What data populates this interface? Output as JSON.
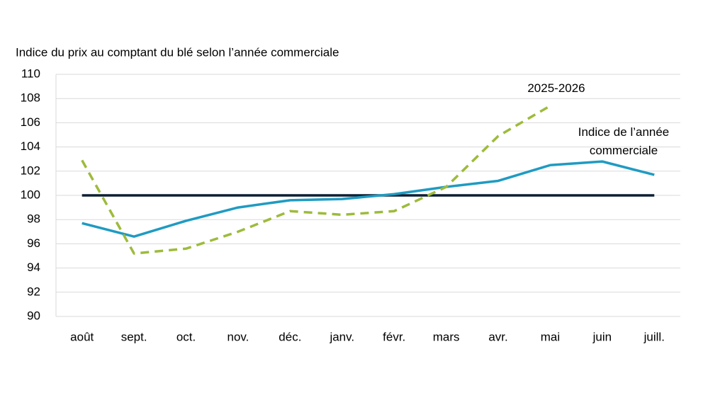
{
  "chart_data": {
    "type": "line",
    "title": "Indice du prix au comptant du blé selon l’année commerciale",
    "categories": [
      "août",
      "sept.",
      "oct.",
      "nov.",
      "déc.",
      "janv.",
      "févr.",
      "mars",
      "avr.",
      "mai",
      "juin",
      "juill."
    ],
    "series": [
      {
        "name": "Indice de l’année commerciale",
        "color": "#1f9bc2",
        "dashed": false,
        "values": [
          97.7,
          96.6,
          97.9,
          99.0,
          99.6,
          99.7,
          100.1,
          100.7,
          101.2,
          102.5,
          102.8,
          101.7
        ]
      },
      {
        "name": "2025-2026",
        "color": "#9dbb3b",
        "dashed": true,
        "values": [
          102.9,
          95.2,
          95.6,
          97.0,
          98.7,
          98.4,
          98.7,
          100.7,
          104.9,
          107.4,
          null,
          null
        ]
      }
    ],
    "reference_line": 100,
    "reference_color": "#0c1f33",
    "ylim": [
      90,
      110
    ],
    "yticks": [
      90,
      92,
      94,
      96,
      98,
      100,
      102,
      104,
      106,
      108,
      110
    ],
    "grid": true
  }
}
